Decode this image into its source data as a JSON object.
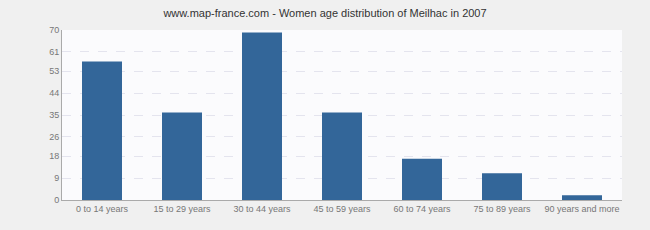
{
  "chart_data": {
    "type": "bar",
    "title": "www.map-france.com - Women age distribution of Meilhac in 2007",
    "categories": [
      "0 to 14 years",
      "15 to 29 years",
      "30 to 44 years",
      "45 to 59 years",
      "60 to 74 years",
      "75 to 89 years",
      "90 years and more"
    ],
    "values": [
      57,
      36,
      69,
      36,
      17,
      11,
      2
    ],
    "color": "#336699",
    "ylim": [
      0,
      70
    ],
    "yticks": [
      0,
      9,
      18,
      26,
      35,
      44,
      53,
      61,
      70
    ],
    "grid": true
  }
}
